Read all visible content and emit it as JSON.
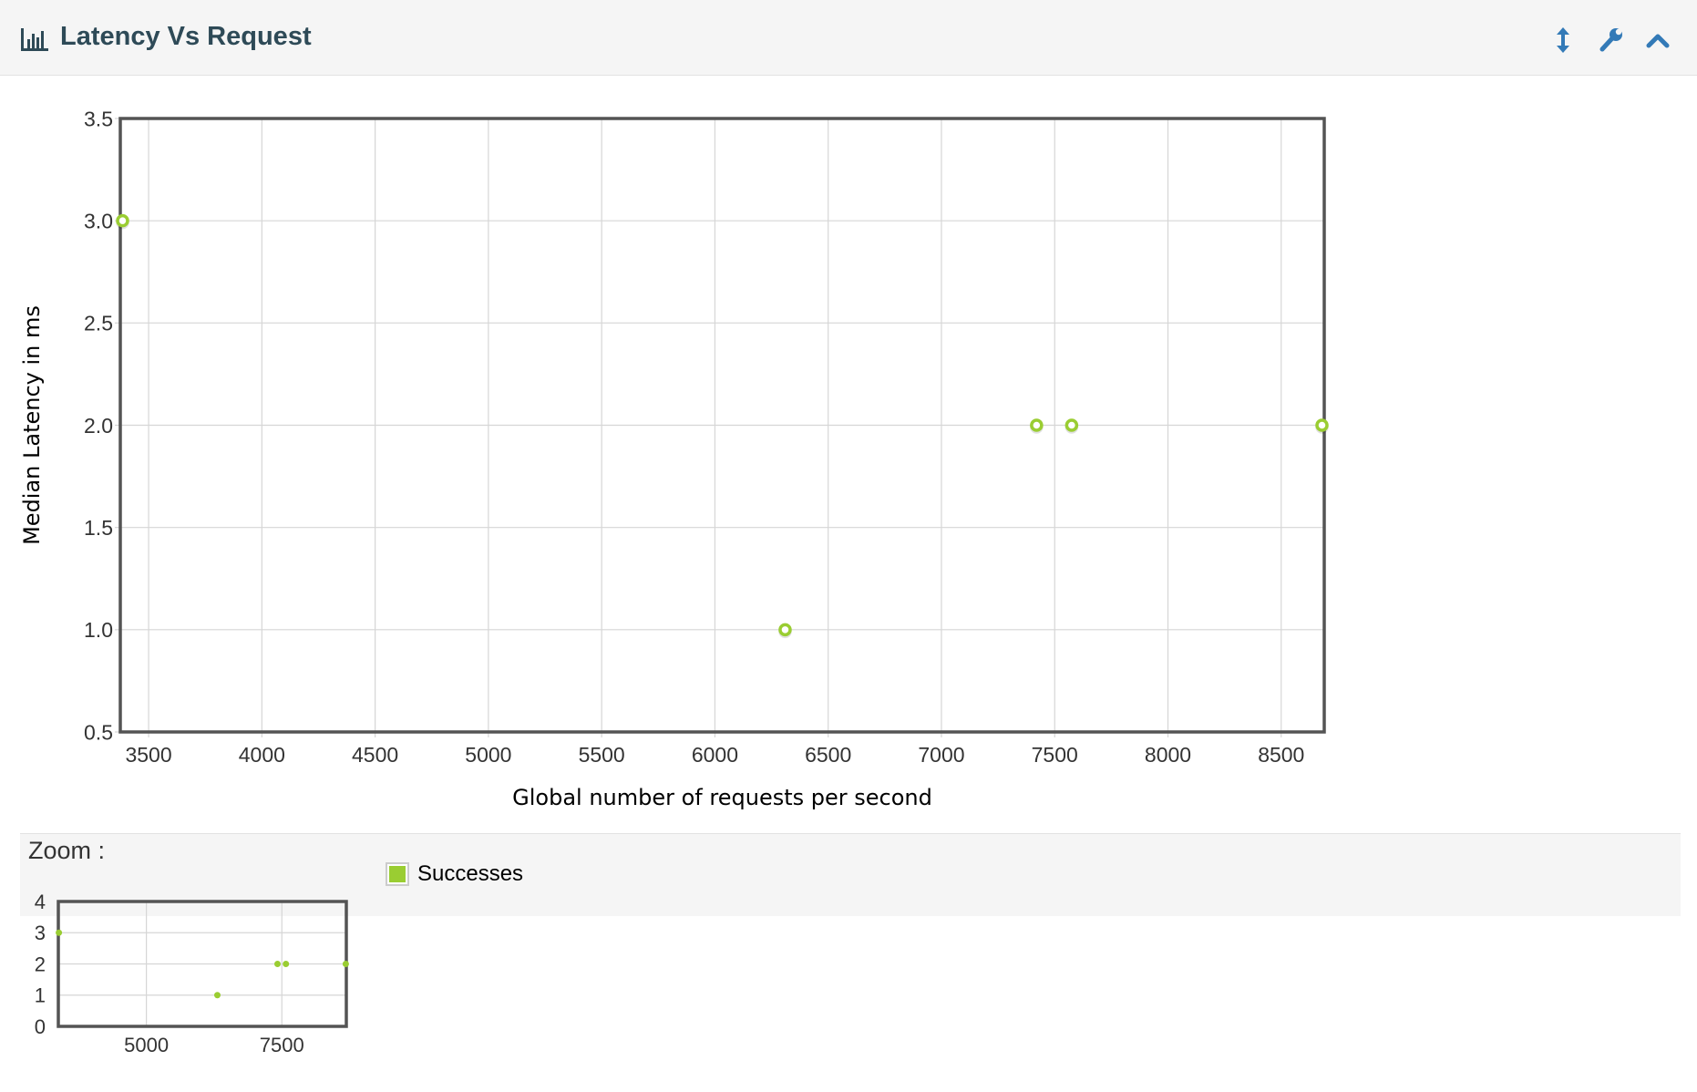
{
  "header": {
    "title": "Latency Vs Request",
    "icon": "bar-chart-icon",
    "actions": [
      {
        "name": "resize",
        "icon": "vertical-arrows-icon"
      },
      {
        "name": "settings",
        "icon": "wrench-icon"
      },
      {
        "name": "collapse",
        "icon": "chevron-up-icon"
      }
    ]
  },
  "colors": {
    "accent": "#337ab7",
    "title": "#2e4a57",
    "series": "#9acd32",
    "grid": "#d6d6d6",
    "axis": "#545454"
  },
  "chart_data": [
    {
      "type": "scatter",
      "xlabel": "Global number of requests per second",
      "ylabel": "Median Latency in ms",
      "xlim": [
        3375,
        8690
      ],
      "ylim": [
        0.5,
        3.5
      ],
      "x_ticks": [
        3500,
        4000,
        4500,
        5000,
        5500,
        6000,
        6500,
        7000,
        7500,
        8000,
        8500
      ],
      "y_ticks": [
        "0.5",
        "1.0",
        "1.5",
        "2.0",
        "2.5",
        "3.0",
        "3.5"
      ],
      "grid": true,
      "series": [
        {
          "name": "Successes",
          "color": "#9acd32",
          "points": [
            {
              "x": 3385,
              "y": 3.0
            },
            {
              "x": 6310,
              "y": 1.0
            },
            {
              "x": 7420,
              "y": 2.0
            },
            {
              "x": 7575,
              "y": 2.0
            },
            {
              "x": 8680,
              "y": 2.0
            }
          ]
        }
      ]
    },
    {
      "type": "scatter",
      "title": "Zoom :",
      "xlim": [
        3375,
        8690
      ],
      "ylim": [
        0,
        4
      ],
      "x_ticks": [
        5000,
        7500
      ],
      "y_ticks": [
        "0",
        "1",
        "2",
        "3",
        "4"
      ],
      "grid": true,
      "series": [
        {
          "color": "#9acd32",
          "points": [
            {
              "x": 3385,
              "y": 3.0
            },
            {
              "x": 6310,
              "y": 1.0
            },
            {
              "x": 7420,
              "y": 2.0
            },
            {
              "x": 7575,
              "y": 2.0
            },
            {
              "x": 8680,
              "y": 2.0
            }
          ]
        }
      ]
    }
  ],
  "legend": {
    "items": [
      {
        "label": "Successes",
        "color": "#9acd32"
      }
    ],
    "placement": "below-chart"
  }
}
